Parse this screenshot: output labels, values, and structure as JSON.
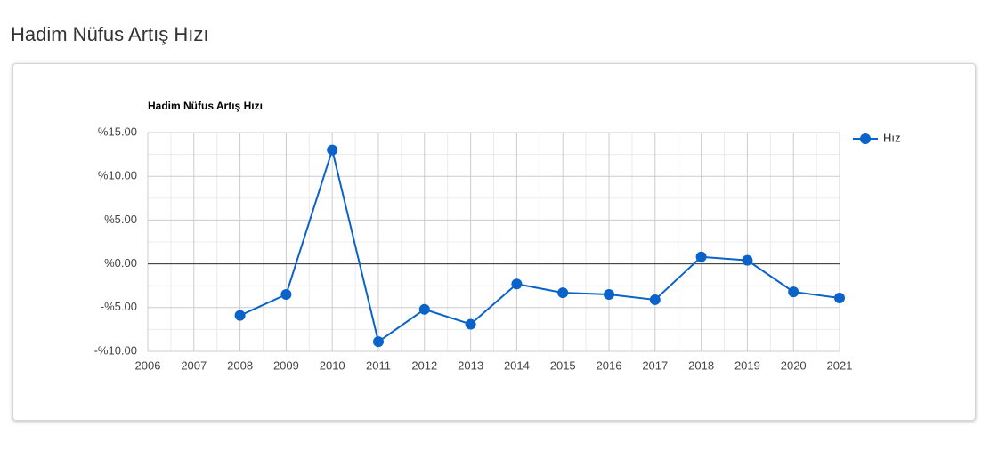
{
  "page_title": "Hadim Nüfus Artış Hızı",
  "chart_data": {
    "type": "line",
    "title": "Hadim Nüfus Artış Hızı",
    "x": [
      2008,
      2009,
      2010,
      2011,
      2012,
      2013,
      2014,
      2015,
      2016,
      2017,
      2018,
      2019,
      2020,
      2021
    ],
    "series": [
      {
        "name": "Hız",
        "color": "#0a63c9",
        "values": [
          -5.9,
          -3.5,
          13.0,
          -8.9,
          -5.2,
          -6.9,
          -2.3,
          -3.3,
          -3.5,
          -4.1,
          0.8,
          0.4,
          -3.2,
          -3.9
        ]
      }
    ],
    "xlim": [
      2006,
      2021
    ],
    "xticks": [
      2006,
      2007,
      2008,
      2009,
      2010,
      2011,
      2012,
      2013,
      2014,
      2015,
      2016,
      2017,
      2018,
      2019,
      2020,
      2021
    ],
    "ylim": [
      -10,
      15
    ],
    "yticks": [
      {
        "value": -10,
        "label": "-%10.00"
      },
      {
        "value": -5,
        "label": "-%5.00"
      },
      {
        "value": 0,
        "label": "%0.00"
      },
      {
        "value": 5,
        "label": "%5.00"
      },
      {
        "value": 10,
        "label": "%10.00"
      },
      {
        "value": 15,
        "label": "%15.00"
      }
    ],
    "grid": true,
    "legend": "right"
  }
}
